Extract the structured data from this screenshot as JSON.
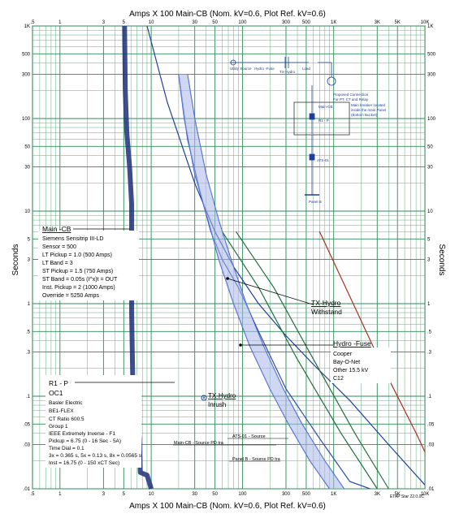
{
  "chart_data": {
    "type": "line",
    "x_scale": "log",
    "y_scale": "log",
    "xlim": [
      0.5,
      10000
    ],
    "ylim": [
      0.01,
      1000
    ],
    "grid": true,
    "title_top": "Amps  X  100   Main-CB  (Nom. kV=0.6, Plot Ref. kV=0.6)",
    "title_bottom": "Amps  X  100   Main-CB  (Nom. kV=0.6, Plot Ref. kV=0.6)",
    "ylabel": "Seconds",
    "x_ticks": [
      {
        "v": 0.5,
        "label": ".5"
      },
      {
        "v": 1,
        "label": "1"
      },
      {
        "v": 3,
        "label": "3"
      },
      {
        "v": 5,
        "label": "5"
      },
      {
        "v": 10,
        "label": "10"
      },
      {
        "v": 30,
        "label": "30"
      },
      {
        "v": 50,
        "label": "50"
      },
      {
        "v": 100,
        "label": "100"
      },
      {
        "v": 300,
        "label": "300"
      },
      {
        "v": 500,
        "label": "500"
      },
      {
        "v": 1000,
        "label": "1K"
      },
      {
        "v": 3000,
        "label": "3K"
      },
      {
        "v": 5000,
        "label": "5K"
      },
      {
        "v": 10000,
        "label": "10K"
      }
    ],
    "y_ticks": [
      {
        "v": 1000,
        "label": "1K"
      },
      {
        "v": 500,
        "label": "500"
      },
      {
        "v": 300,
        "label": "300"
      },
      {
        "v": 100,
        "label": "100"
      },
      {
        "v": 50,
        "label": "50"
      },
      {
        "v": 30,
        "label": "30"
      },
      {
        "v": 10,
        "label": "10"
      },
      {
        "v": 5,
        "label": "5"
      },
      {
        "v": 3,
        "label": "3"
      },
      {
        "v": 1,
        "label": "1"
      },
      {
        "v": 0.5,
        "label": ".5"
      },
      {
        "v": 0.3,
        "label": ".3"
      },
      {
        "v": 0.1,
        "label": ".1"
      },
      {
        "v": 0.05,
        "label": ".05"
      },
      {
        "v": 0.03,
        "label": ".03"
      },
      {
        "v": 0.01,
        "label": ".01"
      }
    ],
    "series": [
      {
        "name": "Main -CB",
        "color": "#1f2f7a",
        "points": [
          [
            5.1,
            1000
          ],
          [
            5.2,
            200
          ],
          [
            5.4,
            70
          ],
          [
            5.8,
            30
          ],
          [
            6.1,
            12
          ],
          [
            6.1,
            0.8
          ],
          [
            6.3,
            0.12
          ],
          [
            6.6,
            0.1
          ],
          [
            7,
            0.06
          ],
          [
            7.4,
            0.035
          ],
          [
            7.6,
            0.015
          ],
          [
            9,
            0.014
          ],
          [
            10,
            0.01
          ]
        ]
      },
      {
        "name": "R1 - P OC1",
        "color": "#1f3f9a",
        "points": [
          [
            9,
            1000
          ],
          [
            15,
            150
          ],
          [
            30,
            20
          ],
          [
            50,
            6
          ],
          [
            80,
            2.5
          ],
          [
            150,
            1
          ],
          [
            300,
            0.45
          ],
          [
            600,
            0.22
          ],
          [
            1500,
            0.09
          ],
          [
            4000,
            0.03
          ],
          [
            10000,
            0.011
          ]
        ]
      },
      {
        "name": "TX-Hydro Withstand",
        "color": "#2f4fb0",
        "points": [
          [
            20,
            300
          ],
          [
            25,
            60
          ],
          [
            35,
            15
          ],
          [
            45,
            6
          ],
          [
            60,
            3
          ],
          [
            90,
            1.5
          ],
          [
            150,
            0.5
          ],
          [
            300,
            0.12
          ],
          [
            700,
            0.035
          ],
          [
            1500,
            0.012
          ],
          [
            2500,
            0.01
          ]
        ]
      },
      {
        "name": "Hydro -Fuse",
        "color": "#3a5fd0",
        "points": [
          [
            25,
            300
          ],
          [
            30,
            100
          ],
          [
            40,
            25
          ],
          [
            55,
            8
          ],
          [
            75,
            3
          ],
          [
            110,
            1
          ],
          [
            170,
            0.35
          ],
          [
            280,
            0.12
          ],
          [
            450,
            0.05
          ],
          [
            800,
            0.02
          ],
          [
            1300,
            0.01
          ]
        ]
      },
      {
        "name": "Hydro -Fuse",
        "color": "#3a5fd0",
        "points": [
          [
            20,
            300
          ],
          [
            23,
            100
          ],
          [
            30,
            25
          ],
          [
            42,
            8
          ],
          [
            55,
            3
          ],
          [
            80,
            1
          ],
          [
            120,
            0.35
          ],
          [
            200,
            0.12
          ],
          [
            320,
            0.05
          ],
          [
            550,
            0.02
          ],
          [
            900,
            0.01
          ]
        ]
      },
      {
        "name": "",
        "color": "#1f6f3f",
        "points": [
          [
            60,
            6
          ],
          [
            150,
            1.5
          ],
          [
            400,
            0.25
          ],
          [
            1200,
            0.04
          ],
          [
            3000,
            0.01
          ]
        ]
      },
      {
        "name": "",
        "color": "#1f6f3f",
        "points": [
          [
            85,
            6
          ],
          [
            220,
            1.5
          ],
          [
            600,
            0.25
          ],
          [
            1700,
            0.04
          ],
          [
            4000,
            0.01
          ]
        ]
      },
      {
        "name": "",
        "color": "#a83020",
        "points": [
          [
            700,
            6
          ],
          [
            1500,
            1.2
          ],
          [
            3500,
            0.2
          ],
          [
            8000,
            0.04
          ],
          [
            10000,
            0.025
          ]
        ]
      }
    ],
    "annotations": {
      "main_cb": {
        "title": "Main -CB",
        "lines": [
          "Siemens  Sensitrip III-LD",
          "Sensor = 500",
          "LT Pickup = 1.0 (500 Amps)",
          "LT Band = 3",
          "ST Pickup = 1.5 (750 Amps)",
          "ST Band = 0.05s  (I^x)t = OUT",
          "Inst. Pickup = 2 (1000 Amps)",
          "Override = 5250 Amps"
        ]
      },
      "r1p": {
        "title": "R1 - P",
        "subtitle": "OC1",
        "lines": [
          "Basler Electric",
          "BE1-FLEX",
          "CT Ratio 600:5",
          "Group 1",
          "IEEE Extremely Inverse - F1",
          "Pickup = 6.75 (0 - 16  Sec - 5A)",
          "Time Dial = 0.1",
          "3x = 0.365 s, 5x = 0.13 s, 8x = 0.0565 s",
          "Inst = 16.75 (0 - 150  xCT Sec)"
        ]
      },
      "tx_withstand": {
        "line1": "TX-Hydro",
        "line2": "Withstand"
      },
      "hydro_fuse": {
        "title": "Hydro -Fuse",
        "lines": [
          "Cooper",
          "Bay-O-Net",
          "Other   15.5 kV",
          "C12"
        ]
      },
      "tx_inrush": {
        "line1": "TX-Hydro",
        "line2": "Inrush"
      },
      "source_labels": [
        "Main-CB - Source PD tra",
        "ATS-01 - Source",
        "Panel B - Source PD tra"
      ]
    },
    "one_line": {
      "labels": [
        "Utility Source",
        "Hydro -Fuse",
        "TX-Hydro",
        "Load",
        "Proposed Connection",
        "For PT, CT and Relay",
        "Main breaker located",
        "inside the main Panel",
        "(Bottom Bucket)",
        "Main-CB",
        "R1 - P",
        "ATS-01",
        "Panel B"
      ]
    },
    "footer": "ETAP Star 22.0.0C"
  }
}
